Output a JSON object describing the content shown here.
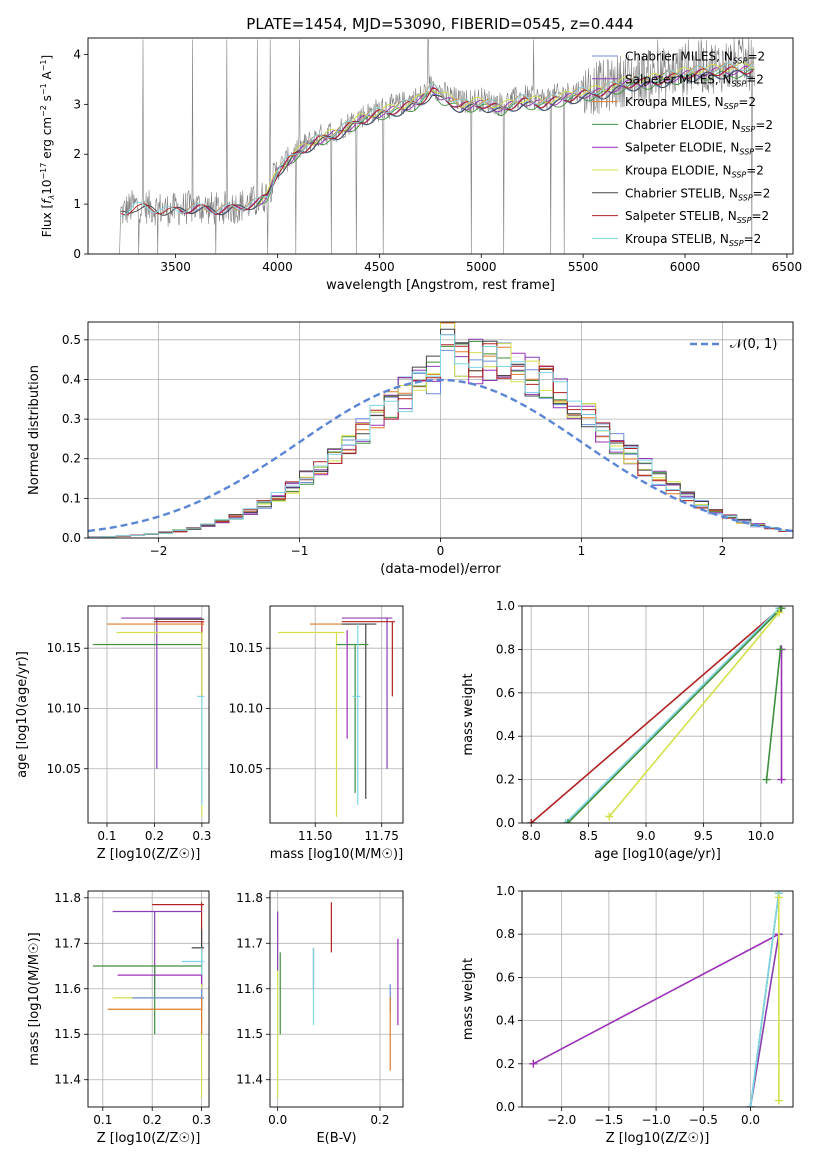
{
  "figure_title": "PLATE=1454, MJD=53090, FIBERID=0545, z=0.444",
  "colors": {
    "chabrier_miles": "#6a8ed6",
    "salpeter_miles": "#8a3fb0",
    "kroupa_miles": "#e07b2a",
    "chabrier_elodie": "#3f8f3f",
    "salpeter_elodie": "#9b30b8",
    "kroupa_elodie": "#d4e04a",
    "chabrier_stelib": "#444444",
    "salpeter_stelib": "#b22222",
    "kroupa_stelib": "#7fd4e6",
    "data": "#808080",
    "normal": "#5b86d6",
    "grid": "#b0b0b0"
  },
  "chart_data": [
    {
      "id": "spectrum",
      "type": "line",
      "title": "PLATE=1454, MJD=53090, FIBERID=0545, z=0.444",
      "xlabel": "wavelength [Angstrom, rest frame]",
      "ylabel": "Flux [f_λ 10^-17 erg cm^-2 s^-1 A^-1]",
      "xlim": [
        3070,
        6530
      ],
      "ylim": [
        0,
        4.33
      ],
      "xticks": [
        3500,
        4000,
        4500,
        5000,
        5500,
        6000,
        6500
      ],
      "yticks": [
        0,
        1,
        2,
        3,
        4
      ],
      "grid": false,
      "legend": "top-right",
      "series": [
        {
          "name": "Chabrier MILES, N_SSP=2"
        },
        {
          "name": "Salpeter MILES, N_SSP=2"
        },
        {
          "name": "Kroupa MILES, N_SSP=2"
        },
        {
          "name": "Chabrier ELODIE, N_SSP=2"
        },
        {
          "name": "Salpeter ELODIE, N_SSP=2"
        },
        {
          "name": "Kroupa ELODIE, N_SSP=2"
        },
        {
          "name": "Chabrier STELIB, N_SSP=2"
        },
        {
          "name": "Salpeter STELIB, N_SSP=2"
        },
        {
          "name": "Kroupa STELIB, N_SSP=2"
        }
      ],
      "continuum_points": [
        [
          3230,
          0.82
        ],
        [
          3300,
          0.98
        ],
        [
          3400,
          0.92
        ],
        [
          3480,
          0.88
        ],
        [
          3600,
          0.95
        ],
        [
          3700,
          0.9
        ],
        [
          3800,
          0.95
        ],
        [
          3900,
          1.05
        ],
        [
          3950,
          1.2
        ],
        [
          4000,
          1.7
        ],
        [
          4100,
          2.1
        ],
        [
          4200,
          2.35
        ],
        [
          4300,
          2.5
        ],
        [
          4400,
          2.75
        ],
        [
          4500,
          2.9
        ],
        [
          4600,
          3.0
        ],
        [
          4700,
          3.15
        ],
        [
          4760,
          3.4
        ],
        [
          4800,
          3.25
        ],
        [
          4900,
          3.05
        ],
        [
          5000,
          3.1
        ],
        [
          5100,
          3.0
        ],
        [
          5200,
          3.15
        ],
        [
          5300,
          3.1
        ],
        [
          5400,
          3.2
        ],
        [
          5500,
          3.3
        ],
        [
          5600,
          3.35
        ],
        [
          5700,
          3.5
        ],
        [
          5800,
          3.55
        ],
        [
          5900,
          3.6
        ],
        [
          6000,
          3.7
        ],
        [
          6100,
          3.75
        ],
        [
          6200,
          3.78
        ],
        [
          6300,
          3.8
        ],
        [
          6340,
          3.82
        ]
      ]
    },
    {
      "id": "residuals",
      "type": "histogram",
      "xlabel": "(data-model)/error",
      "ylabel": "Normed distribution",
      "xlim": [
        -2.5,
        2.5
      ],
      "ylim": [
        0,
        0.545
      ],
      "xticks": [
        -2,
        -1,
        0,
        1,
        2
      ],
      "yticks": [
        0.0,
        0.1,
        0.2,
        0.3,
        0.4,
        0.5
      ],
      "grid": true,
      "legend": "top-right",
      "legend_label": "N(0, 1)",
      "bin_width": 0.1,
      "shape": {
        "mean": 0.3,
        "sd": 0.85
      }
    },
    {
      "id": "age_vs_Z",
      "type": "errorbar",
      "xlabel": "Z [log10(Z/Z☉)]",
      "ylabel": "age [log10(age/yr)]",
      "xlim": [
        0.06,
        0.315
      ],
      "ylim": [
        10.005,
        10.185
      ],
      "xticks": [
        0.1,
        0.2,
        0.3
      ],
      "yticks": [
        10.05,
        10.1,
        10.15
      ],
      "grid": true,
      "points": [
        {
          "s": "chabrier_elodie",
          "x": 0.3,
          "y": 10.153,
          "xlo": 0.07,
          "xhi": 0.3,
          "ylo": 10.153,
          "yhi": 10.153
        },
        {
          "s": "salpeter_miles",
          "x": 0.205,
          "y": 10.175,
          "xlo": 0.13,
          "xhi": 0.3,
          "ylo": 10.05,
          "yhi": 10.175
        },
        {
          "s": "salpeter_stelib",
          "x": 0.3,
          "y": 10.172,
          "xlo": 0.2,
          "xhi": 0.305,
          "ylo": 10.11,
          "yhi": 10.172
        },
        {
          "s": "kroupa_miles",
          "x": 0.3,
          "y": 10.17,
          "xlo": 0.1,
          "xhi": 0.305,
          "ylo": 10.17,
          "yhi": 10.17
        },
        {
          "s": "kroupa_elodie",
          "x": 0.3,
          "y": 10.163,
          "xlo": 0.12,
          "xhi": 0.3,
          "ylo": 10.01,
          "yhi": 10.163
        },
        {
          "s": "kroupa_stelib",
          "x": 0.3,
          "y": 10.11,
          "xlo": 0.29,
          "xhi": 0.305,
          "ylo": 10.02,
          "yhi": 10.11
        },
        {
          "s": "chabrier_stelib",
          "x": 0.3,
          "y": 10.174,
          "xlo": 0.2,
          "xhi": 0.305,
          "ylo": 10.174,
          "yhi": 10.174
        }
      ]
    },
    {
      "id": "age_vs_mass",
      "type": "errorbar",
      "xlabel": "mass [log10(M/M☉)]",
      "ylabel": "",
      "xlim": [
        11.33,
        11.83
      ],
      "ylim": [
        10.005,
        10.185
      ],
      "xticks": [
        11.5,
        11.75
      ],
      "yticks": [
        10.05,
        10.1,
        10.15
      ],
      "grid": true,
      "points": [
        {
          "s": "kroupa_elodie",
          "x": 11.58,
          "y": 10.163,
          "xlo": 11.36,
          "xhi": 11.61,
          "ylo": 10.01,
          "yhi": 10.163
        },
        {
          "s": "kroupa_miles",
          "x": 11.55,
          "y": 10.17,
          "xlo": 11.48,
          "xhi": 11.68,
          "ylo": 10.17,
          "yhi": 10.17
        },
        {
          "s": "salpeter_miles",
          "x": 11.77,
          "y": 10.175,
          "xlo": 11.6,
          "xhi": 11.79,
          "ylo": 10.05,
          "yhi": 10.175
        },
        {
          "s": "salpeter_stelib",
          "x": 11.79,
          "y": 10.172,
          "xlo": 11.6,
          "xhi": 11.8,
          "ylo": 10.11,
          "yhi": 10.172
        },
        {
          "s": "chabrier_stelib",
          "x": 11.69,
          "y": 10.17,
          "xlo": 11.6,
          "xhi": 11.73,
          "ylo": 10.025,
          "yhi": 10.17
        },
        {
          "s": "chabrier_elodie",
          "x": 11.65,
          "y": 10.153,
          "xlo": 11.58,
          "xhi": 11.7,
          "ylo": 10.03,
          "yhi": 10.153
        },
        {
          "s": "kroupa_stelib",
          "x": 11.66,
          "y": 10.11,
          "xlo": 11.64,
          "xhi": 11.67,
          "ylo": 10.02,
          "yhi": 10.17
        },
        {
          "s": "salpeter_elodie",
          "x": 11.62,
          "y": 10.165,
          "xlo": 11.62,
          "xhi": 11.62,
          "ylo": 10.075,
          "yhi": 10.165
        }
      ]
    },
    {
      "id": "massweight_vs_age",
      "type": "line",
      "xlabel": "age [log10(age/yr)]",
      "ylabel": "mass weight",
      "xlim": [
        7.92,
        10.28
      ],
      "ylim": [
        0,
        1.0
      ],
      "xticks": [
        8.0,
        8.5,
        9.0,
        9.5,
        10.0
      ],
      "yticks": [
        0.0,
        0.2,
        0.4,
        0.6,
        0.8,
        1.0
      ],
      "grid": true,
      "series": [
        {
          "s": "salpeter_stelib",
          "points": [
            [
              8.0,
              0.0
            ],
            [
              10.17,
              0.99
            ]
          ]
        },
        {
          "s": "kroupa_stelib",
          "points": [
            [
              8.3,
              0.0
            ],
            [
              10.16,
              0.99
            ]
          ]
        },
        {
          "s": "chabrier_elodie",
          "points": [
            [
              8.32,
              0.0
            ],
            [
              10.18,
              0.99
            ]
          ]
        },
        {
          "s": "kroupa_elodie",
          "points": [
            [
              8.68,
              0.03
            ],
            [
              10.16,
              0.97
            ]
          ]
        },
        {
          "s": "salpeter_elodie",
          "points": [
            [
              10.18,
              0.2
            ],
            [
              10.18,
              0.8
            ]
          ]
        },
        {
          "s": "chabrier_elodie",
          "points": [
            [
              10.05,
              0.2
            ],
            [
              10.17,
              0.8
            ]
          ]
        }
      ]
    },
    {
      "id": "mass_vs_Z",
      "type": "errorbar",
      "xlabel": "Z [log10(Z/Z☉)]",
      "ylabel": "mass [log10(M/M☉)]",
      "xlim": [
        0.07,
        0.315
      ],
      "ylim": [
        11.34,
        11.815
      ],
      "xticks": [
        0.1,
        0.2,
        0.3
      ],
      "yticks": [
        11.4,
        11.5,
        11.6,
        11.7,
        11.8
      ],
      "grid": true,
      "points": [
        {
          "s": "salpeter_stelib",
          "x": 0.3,
          "y": 11.785,
          "xlo": 0.2,
          "xhi": 0.305,
          "ylo": 11.68,
          "yhi": 11.79
        },
        {
          "s": "salpeter_miles",
          "x": 0.205,
          "y": 11.77,
          "xlo": 0.12,
          "xhi": 0.3,
          "ylo": 11.6,
          "yhi": 11.77
        },
        {
          "s": "chabrier_stelib",
          "x": 0.3,
          "y": 11.69,
          "xlo": 0.28,
          "xhi": 0.305,
          "ylo": 11.6,
          "yhi": 11.73
        },
        {
          "s": "kroupa_stelib",
          "x": 0.3,
          "y": 11.66,
          "xlo": 0.26,
          "xhi": 0.305,
          "ylo": 11.52,
          "yhi": 11.69
        },
        {
          "s": "chabrier_elodie",
          "x": 0.205,
          "y": 11.65,
          "xlo": 0.08,
          "xhi": 0.3,
          "ylo": 11.5,
          "yhi": 11.65
        },
        {
          "s": "salpeter_elodie",
          "x": 0.3,
          "y": 11.63,
          "xlo": 0.13,
          "xhi": 0.3,
          "ylo": 11.55,
          "yhi": 11.63
        },
        {
          "s": "kroupa_elodie",
          "x": 0.3,
          "y": 11.58,
          "xlo": 0.12,
          "xhi": 0.3,
          "ylo": 11.36,
          "yhi": 11.61
        },
        {
          "s": "chabrier_miles",
          "x": 0.3,
          "y": 11.58,
          "xlo": 0.16,
          "xhi": 0.305,
          "ylo": 11.55,
          "yhi": 11.6
        },
        {
          "s": "kroupa_miles",
          "x": 0.3,
          "y": 11.555,
          "xlo": 0.11,
          "xhi": 0.3,
          "ylo": 11.5,
          "yhi": 11.58
        }
      ]
    },
    {
      "id": "mass_vs_ebv",
      "type": "errorbar",
      "xlabel": "E(B-V)",
      "ylabel": "",
      "xlim": [
        -0.015,
        0.245
      ],
      "ylim": [
        11.34,
        11.815
      ],
      "xticks": [
        0.0,
        0.2
      ],
      "yticks": [
        11.4,
        11.5,
        11.6,
        11.7,
        11.8
      ],
      "grid": true,
      "points": [
        {
          "s": "salpeter_miles",
          "x": 0.0,
          "y": 11.7,
          "xlo": 0.0,
          "xhi": 0.0,
          "ylo": 11.64,
          "yhi": 11.77
        },
        {
          "s": "kroupa_elodie",
          "x": 0.0,
          "y": 11.58,
          "xlo": 0.0,
          "xhi": 0.0,
          "ylo": 11.36,
          "yhi": 11.64
        },
        {
          "s": "chabrier_elodie",
          "x": 0.005,
          "y": 11.6,
          "xlo": 0.005,
          "xhi": 0.005,
          "ylo": 11.5,
          "yhi": 11.68
        },
        {
          "s": "chabrier_stelib",
          "x": 0.07,
          "y": 11.65,
          "xlo": 0.07,
          "xhi": 0.07,
          "ylo": 11.6,
          "yhi": 11.69
        },
        {
          "s": "kroupa_stelib",
          "x": 0.07,
          "y": 11.6,
          "xlo": 0.07,
          "xhi": 0.07,
          "ylo": 11.52,
          "yhi": 11.69
        },
        {
          "s": "salpeter_stelib",
          "x": 0.105,
          "y": 11.73,
          "xlo": 0.105,
          "xhi": 0.105,
          "ylo": 11.68,
          "yhi": 11.79
        },
        {
          "s": "chabrier_miles",
          "x": 0.22,
          "y": 11.58,
          "xlo": 0.22,
          "xhi": 0.22,
          "ylo": 11.55,
          "yhi": 11.61
        },
        {
          "s": "kroupa_miles",
          "x": 0.22,
          "y": 11.5,
          "xlo": 0.22,
          "xhi": 0.22,
          "ylo": 11.42,
          "yhi": 11.58
        },
        {
          "s": "salpeter_elodie",
          "x": 0.235,
          "y": 11.62,
          "xlo": 0.235,
          "xhi": 0.235,
          "ylo": 11.52,
          "yhi": 11.71
        }
      ]
    },
    {
      "id": "massweight_vs_Z",
      "type": "line",
      "xlabel": "Z [log10(Z/Z☉)]",
      "ylabel": "mass weight",
      "xlim": [
        -2.42,
        0.45
      ],
      "ylim": [
        0,
        1.0
      ],
      "xticks": [
        -2.0,
        -1.5,
        -1.0,
        -0.5,
        0.0
      ],
      "yticks": [
        0.0,
        0.2,
        0.4,
        0.6,
        0.8,
        1.0
      ],
      "grid": true,
      "series": [
        {
          "s": "salpeter_elodie",
          "points": [
            [
              -2.3,
              0.2
            ],
            [
              0.3,
              0.8
            ]
          ]
        },
        {
          "s": "salpeter_miles",
          "points": [
            [
              0.0,
              0.0
            ],
            [
              0.3,
              0.8
            ]
          ]
        },
        {
          "s": "chabrier_elodie",
          "points": [
            [
              0.0,
              0.0
            ],
            [
              0.3,
              0.99
            ]
          ]
        },
        {
          "s": "kroupa_stelib",
          "points": [
            [
              0.0,
              0.0
            ],
            [
              0.3,
              0.99
            ]
          ]
        },
        {
          "s": "kroupa_elodie",
          "points": [
            [
              0.3,
              0.03
            ],
            [
              0.3,
              0.97
            ]
          ]
        }
      ]
    }
  ],
  "panel_labels": {
    "spectrum_ylabel": "Flux [f",
    "spectrum_ylabel_rest": "10",
    "spectrum_ylabel_units": " erg cm",
    "residual_legend": "𝒩(0, 1)"
  }
}
